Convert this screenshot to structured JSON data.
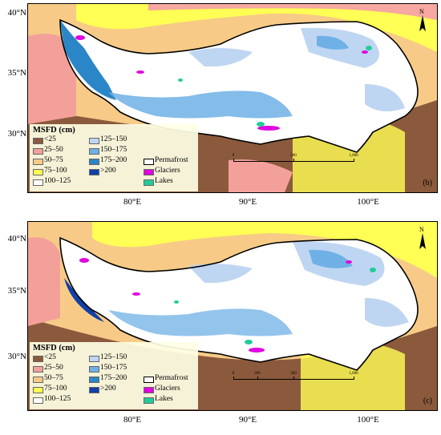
{
  "panels": [
    {
      "id": "b",
      "panel_label": "(b)",
      "scale_ticks": [
        "0",
        "500",
        "1,000"
      ]
    },
    {
      "id": "c",
      "panel_label": "(c)",
      "scale_ticks": [
        "0",
        "200",
        "500",
        "1,000"
      ]
    }
  ],
  "latitude_labels": [
    "40°N",
    "35°N",
    "30°N"
  ],
  "longitude_labels": [
    "80°E",
    "90°E",
    "100°E"
  ],
  "north_arrow": "N",
  "legend": {
    "title": "MSFD (cm)",
    "classes": [
      {
        "label": "<25",
        "color": "#8b5a3c"
      },
      {
        "label": "25–50",
        "color": "#f4a09a"
      },
      {
        "label": "50–75",
        "color": "#f7cb87"
      },
      {
        "label": "75–100",
        "color": "#ffff55"
      },
      {
        "label": "100–125",
        "color": "#ffffff"
      },
      {
        "label": "125–150",
        "color": "#bfd6f2"
      },
      {
        "label": "150–175",
        "color": "#6fb0e6"
      },
      {
        "label": "175–200",
        "color": "#2a86c6"
      },
      {
        "label": ">200",
        "color": "#1040a8"
      }
    ],
    "extras": [
      {
        "label": "Permafrost",
        "color": "#ffffff"
      },
      {
        "label": "Glaciers",
        "color": "#e000e0"
      },
      {
        "label": "Lakes",
        "color": "#22cc99"
      }
    ]
  }
}
